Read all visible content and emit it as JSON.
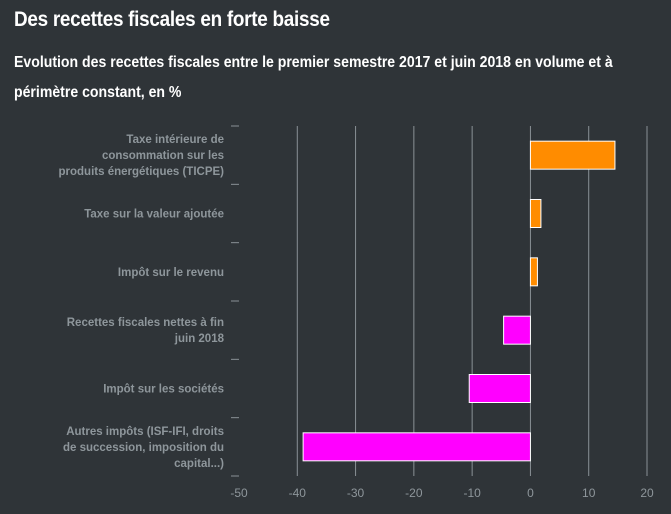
{
  "title": "Des recettes fiscales en forte baisse",
  "subtitle": "Evolution des recettes fiscales entre le premier semestre 2017 et juin 2018 en volume et à périmètre constant, en %",
  "chart_data": {
    "type": "bar",
    "orientation": "horizontal",
    "categories": [
      "Taxe intérieure de consommation sur les produits énergétiques (TICPE)",
      "Taxe sur la valeur ajoutée",
      "Impôt sur le revenu",
      "Recettes fiscales nettes à fin juin 2018",
      "Impôt sur les sociétés",
      "Autres impôts (ISF-IFI, droits de succession, imposition du capital...)"
    ],
    "category_lines": [
      [
        "Taxe intérieure de",
        "consommation sur les",
        "produits énergétiques (TICPE)"
      ],
      [
        "Taxe sur la valeur ajoutée"
      ],
      [
        "Impôt sur le revenu"
      ],
      [
        "Recettes fiscales nettes à fin",
        "juin 2018"
      ],
      [
        "Impôt sur les sociétés"
      ],
      [
        "Autres impôts (ISF-IFI, droits",
        "de succession, imposition du",
        "capital...)"
      ]
    ],
    "values": [
      14.5,
      1.8,
      1.2,
      -4.6,
      -10.5,
      -39
    ],
    "colors": [
      "#ff8c00",
      "#ff8c00",
      "#ff8c00",
      "#ff00ff",
      "#ff00ff",
      "#ff00ff"
    ],
    "xlim": [
      -50,
      20
    ],
    "xticks": [
      -50,
      -40,
      -30,
      -20,
      -10,
      0,
      10,
      20
    ],
    "xtick_labels": [
      "-50",
      "-40",
      "-30",
      "-20",
      "-10",
      "0",
      "10",
      "20"
    ],
    "grid": true,
    "legend": "none"
  }
}
